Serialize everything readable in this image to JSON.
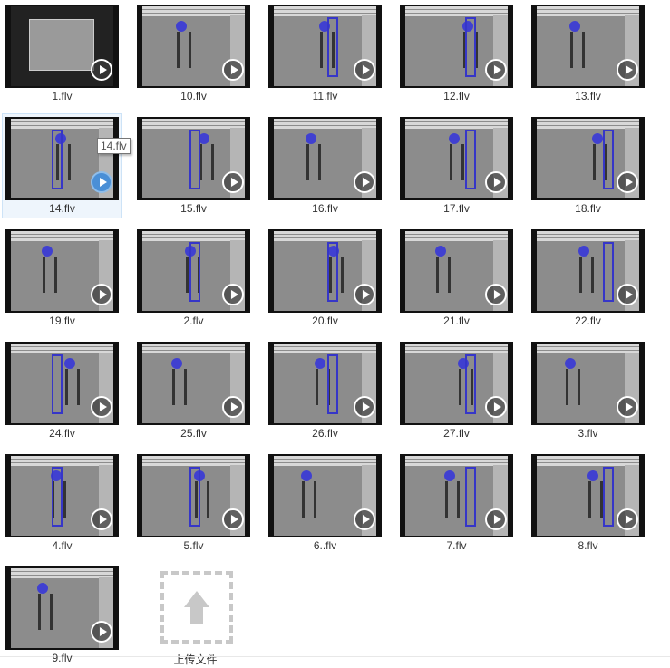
{
  "files": [
    {
      "name": "1.flv"
    },
    {
      "name": "10.flv"
    },
    {
      "name": "11.flv"
    },
    {
      "name": "12.flv"
    },
    {
      "name": "13.flv"
    },
    {
      "name": "14.flv",
      "selected": true
    },
    {
      "name": "15.flv"
    },
    {
      "name": "16.flv"
    },
    {
      "name": "17.flv"
    },
    {
      "name": "18.flv"
    },
    {
      "name": "19.flv"
    },
    {
      "name": "2.flv"
    },
    {
      "name": "20.flv"
    },
    {
      "name": "21.flv"
    },
    {
      "name": "22.flv"
    },
    {
      "name": "24.flv"
    },
    {
      "name": "25.flv"
    },
    {
      "name": "26.flv"
    },
    {
      "name": "27.flv"
    },
    {
      "name": "3.flv"
    },
    {
      "name": "4.flv"
    },
    {
      "name": "5.flv"
    },
    {
      "name": "6..flv"
    },
    {
      "name": "7.flv"
    },
    {
      "name": "8.flv"
    },
    {
      "name": "9.flv"
    }
  ],
  "upload": {
    "label": "上传文件"
  },
  "tooltip": "14.flv"
}
